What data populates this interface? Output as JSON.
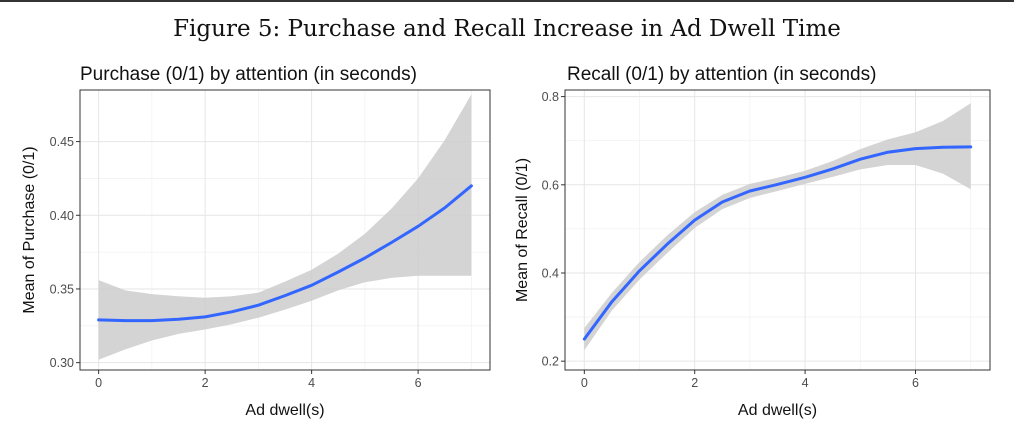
{
  "figure_title": "Figure 5: Purchase and Recall Increase in Ad Dwell Time",
  "chart_data": [
    {
      "type": "line",
      "title": "Purchase (0/1) by attention (in seconds)",
      "xlabel": "Ad dwell(s)",
      "ylabel": "Mean of Purchase (0/1)",
      "xlim": [
        -0.35,
        7.35
      ],
      "ylim": [
        0.295,
        0.485
      ],
      "x_ticks": [
        0,
        2,
        4,
        6
      ],
      "x_tick_labels": [
        "0",
        "2",
        "4",
        "6"
      ],
      "y_ticks": [
        0.3,
        0.35,
        0.4,
        0.45
      ],
      "y_tick_labels": [
        "0.30",
        "0.35",
        "0.40",
        "0.45"
      ],
      "grid": true,
      "line_color": "#3366ff",
      "band_color": "#cccccc",
      "series": [
        {
          "x": [
            0,
            0.5,
            1,
            1.5,
            2,
            2.5,
            3,
            3.5,
            4,
            4.5,
            5,
            5.5,
            6,
            6.5,
            7
          ],
          "values": [
            0.329,
            0.3285,
            0.3285,
            0.3295,
            0.331,
            0.3345,
            0.339,
            0.3455,
            0.3525,
            0.3615,
            0.371,
            0.3815,
            0.3925,
            0.405,
            0.42
          ],
          "lower": [
            0.302,
            0.309,
            0.315,
            0.3195,
            0.3225,
            0.326,
            0.3305,
            0.336,
            0.342,
            0.349,
            0.3545,
            0.3575,
            0.359,
            0.359,
            0.359
          ],
          "upper": [
            0.356,
            0.349,
            0.3465,
            0.345,
            0.344,
            0.345,
            0.3475,
            0.355,
            0.363,
            0.374,
            0.3875,
            0.4045,
            0.425,
            0.451,
            0.482
          ]
        }
      ]
    },
    {
      "type": "line",
      "title": "Recall (0/1) by attention (in seconds)",
      "xlabel": "Ad dwell(s)",
      "ylabel": "Mean of Recall (0/1)",
      "xlim": [
        -0.35,
        7.35
      ],
      "ylim": [
        0.18,
        0.815
      ],
      "x_ticks": [
        0,
        2,
        4,
        6
      ],
      "x_tick_labels": [
        "0",
        "2",
        "4",
        "6"
      ],
      "y_ticks": [
        0.2,
        0.4,
        0.6,
        0.8
      ],
      "y_tick_labels": [
        "0.2",
        "0.4",
        "0.6",
        "0.8"
      ],
      "grid": true,
      "line_color": "#3366ff",
      "band_color": "#cccccc",
      "series": [
        {
          "x": [
            0,
            0.5,
            1,
            1.5,
            2,
            2.5,
            3,
            3.5,
            4,
            4.5,
            5,
            5.5,
            6,
            6.5,
            7
          ],
          "values": [
            0.25,
            0.335,
            0.405,
            0.465,
            0.52,
            0.561,
            0.586,
            0.601,
            0.617,
            0.636,
            0.658,
            0.674,
            0.682,
            0.685,
            0.686
          ],
          "lower": [
            0.225,
            0.315,
            0.385,
            0.445,
            0.502,
            0.545,
            0.57,
            0.586,
            0.602,
            0.618,
            0.635,
            0.645,
            0.645,
            0.625,
            0.59
          ],
          "upper": [
            0.275,
            0.355,
            0.425,
            0.485,
            0.538,
            0.577,
            0.602,
            0.616,
            0.632,
            0.654,
            0.681,
            0.703,
            0.719,
            0.745,
            0.785
          ]
        }
      ]
    }
  ]
}
